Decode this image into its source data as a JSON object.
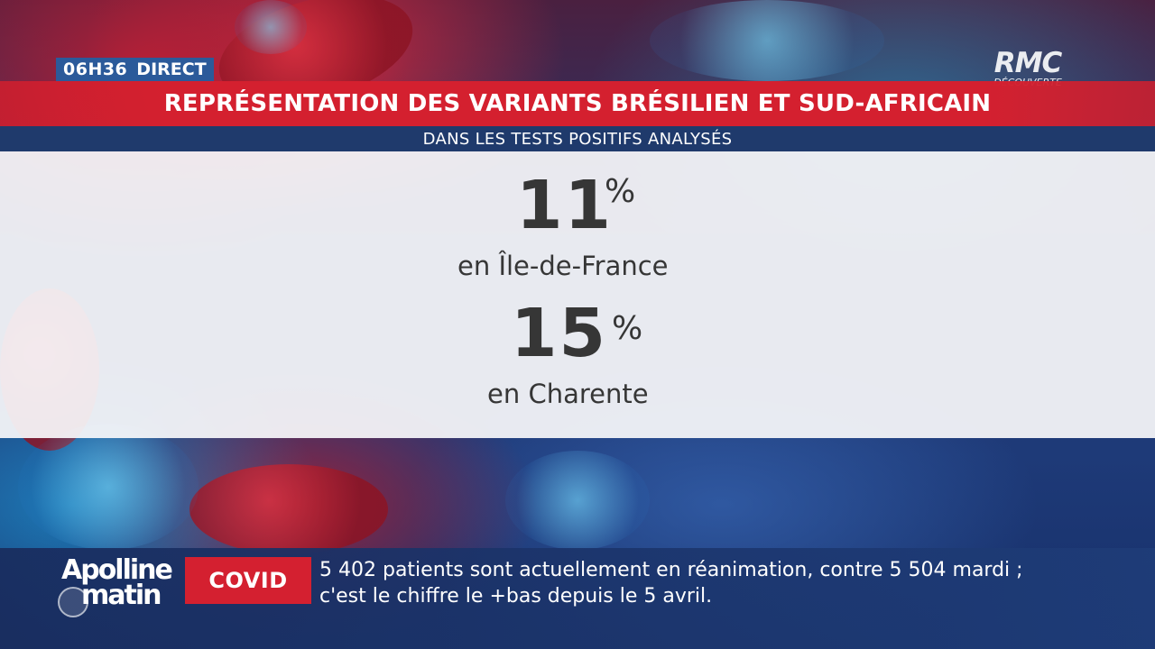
{
  "header": {
    "time": "06H36",
    "live_label": "DIRECT",
    "channel_name": "RMC",
    "channel_subtitle": "DÉCOUVERTE"
  },
  "banner": {
    "title": "REPRÉSENTATION DES VARIANTS BRÉSILIEN ET SUD-AFRICAIN",
    "subtitle": "DANS LES TESTS POSITIFS ANALYSÉS"
  },
  "stats": [
    {
      "value": "11",
      "unit": "%",
      "label": "en Île-de-France"
    },
    {
      "value": "15",
      "unit": "%",
      "label": "en Charente"
    }
  ],
  "show": {
    "name_line1": "Apolline",
    "name_line2": "matin"
  },
  "ticker": {
    "tag": "COVID",
    "line1": "5 402 patients sont actuellement en réanimation, contre 5 504 mardi ;",
    "line2": "c'est le chiffre le +bas depuis le 5 avril."
  },
  "colors": {
    "accent_red": "#d4202f",
    "navy": "#1f3a6c",
    "clock_blue": "#2b5a9a"
  }
}
